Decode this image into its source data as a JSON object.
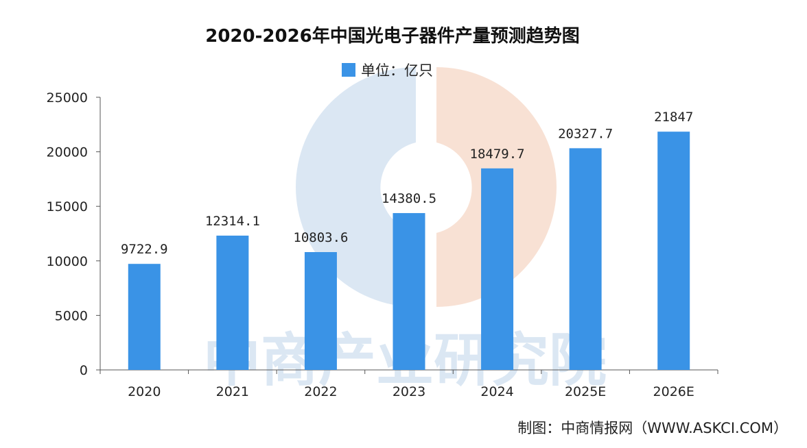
{
  "watermark": {
    "text": "中商产业研究院",
    "colors": {
      "left": "#dbe7f3",
      "right": "#f8e1d4"
    }
  },
  "credit": "制图：中商情报网（WWW.ASKCI.COM）",
  "chart_data": {
    "type": "bar",
    "title": "2020-2026年中国光电子器件产量预测趋势图",
    "legend": {
      "label": "单位：亿只",
      "placement": "top-center"
    },
    "categories": [
      "2020",
      "2021",
      "2022",
      "2023",
      "2024",
      "2025E",
      "2026E"
    ],
    "values": [
      9722.9,
      12314.1,
      10803.6,
      14380.5,
      18479.7,
      20327.7,
      21847
    ],
    "value_labels": [
      "9722.9",
      "12314.1",
      "10803.6",
      "14380.5",
      "18479.7",
      "20327.7",
      "21847"
    ],
    "ylim": [
      0,
      25000
    ],
    "yticks": [
      0,
      5000,
      10000,
      15000,
      20000,
      25000
    ],
    "grid": false,
    "colors": {
      "bar": "#3a93e6",
      "axis": "#555555"
    }
  }
}
